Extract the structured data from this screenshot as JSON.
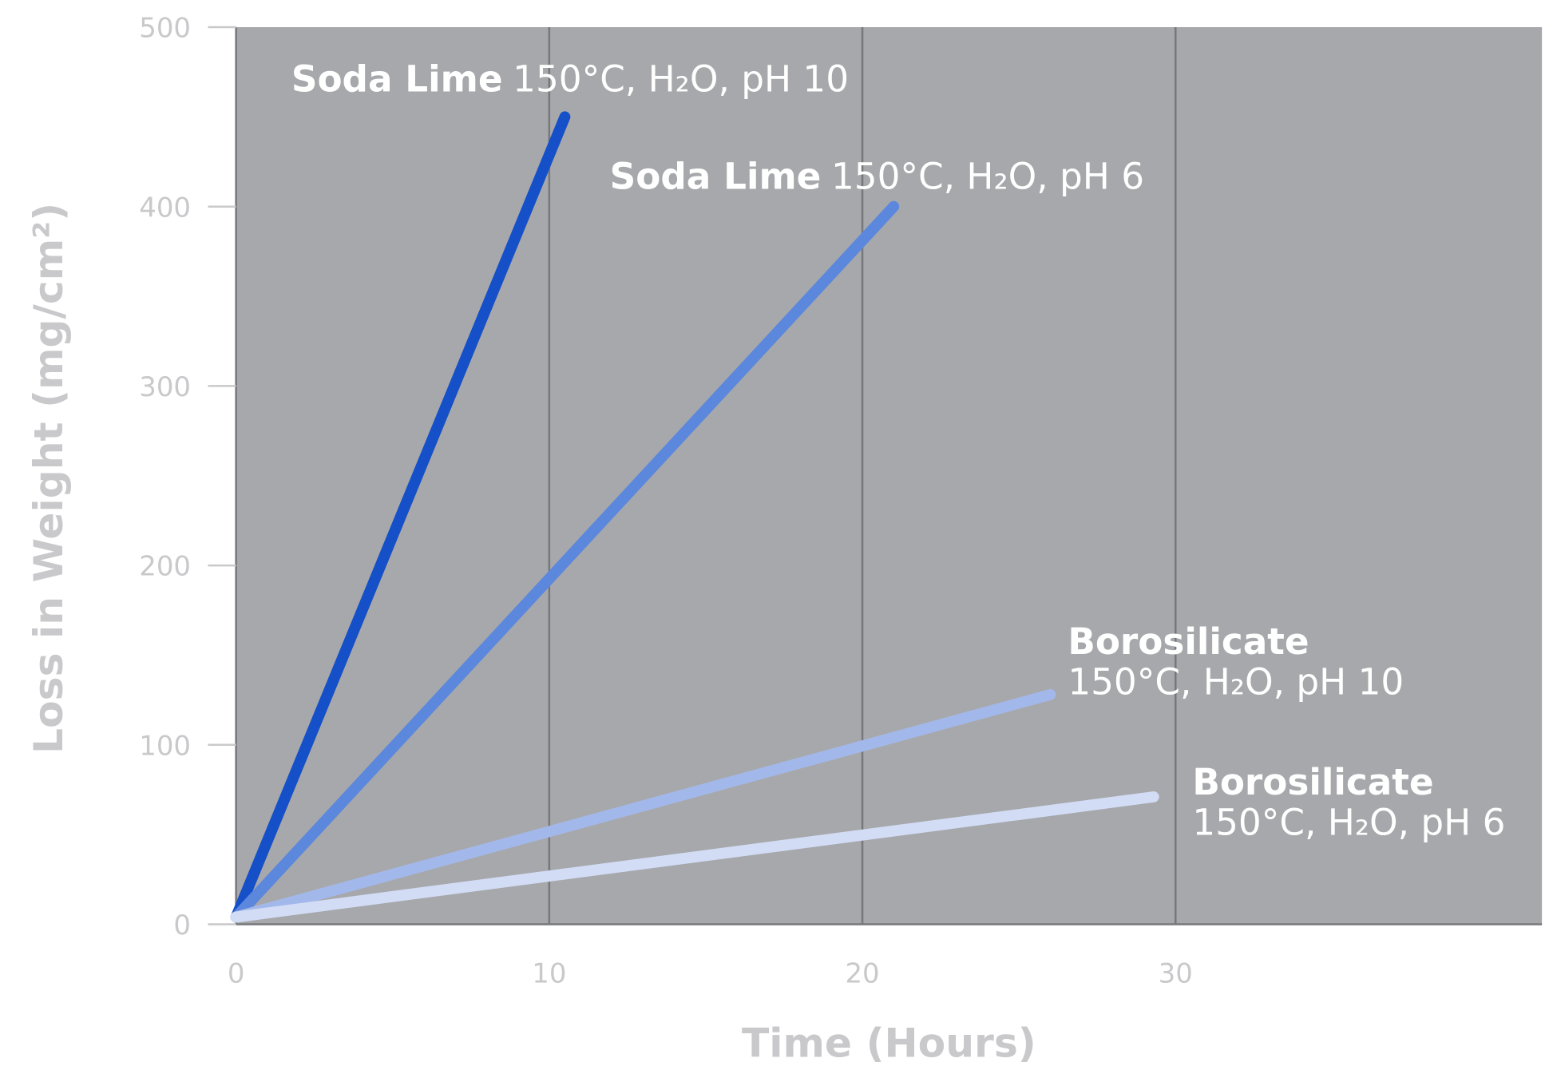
{
  "chart_data": {
    "type": "line",
    "x_label": "Time (Hours)",
    "y_label": "Loss in Weight (mg/cm²)",
    "xlim": [
      0,
      41.7
    ],
    "xticks": [
      0,
      10,
      20,
      30
    ],
    "ylim": [
      0,
      500
    ],
    "yticks": [
      0,
      100,
      200,
      300,
      400,
      500
    ],
    "grid": true,
    "background": "#a7a8ab",
    "series": [
      {
        "name": "Soda Lime",
        "condition": "150°C, H₂O, pH 10",
        "color": "#1550c8",
        "x": [
          0,
          10.5
        ],
        "values": [
          4,
          450
        ]
      },
      {
        "name": "Soda Lime",
        "condition": "150°C, H₂O, pH 6",
        "color": "#5b87dd",
        "x": [
          0,
          21
        ],
        "values": [
          4,
          400
        ]
      },
      {
        "name": "Borosilicate",
        "condition": "150°C, H₂O, pH 10",
        "color": "#a3b8ea",
        "x": [
          0,
          26
        ],
        "values": [
          4,
          128
        ]
      },
      {
        "name": "Borosilicate",
        "condition": "150°C, H₂O, pH 6",
        "color": "#d2dcf5",
        "x": [
          0,
          29.3
        ],
        "values": [
          4,
          71
        ]
      }
    ]
  }
}
